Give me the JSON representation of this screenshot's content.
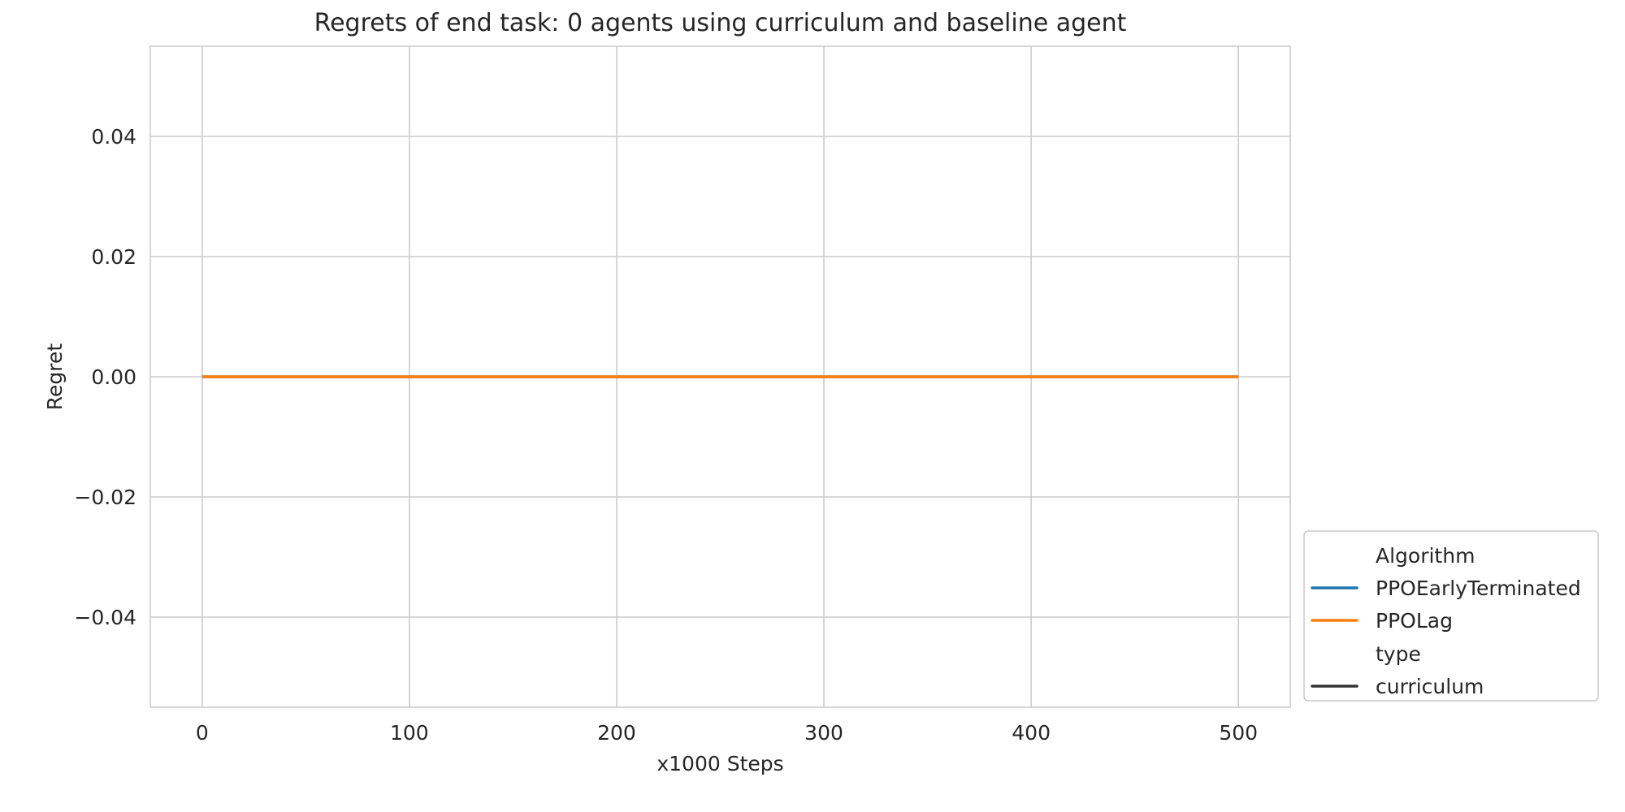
{
  "chart_data": {
    "type": "line",
    "title": "Regrets of end task: 0 agents using curriculum and baseline agent",
    "xlabel": "x1000 Steps",
    "ylabel": "Regret",
    "xlim": [
      -25,
      525
    ],
    "ylim": [
      -0.055,
      0.055
    ],
    "x_ticks": [
      0,
      100,
      200,
      300,
      400,
      500
    ],
    "x_tick_labels": [
      "0",
      "100",
      "200",
      "300",
      "400",
      "500"
    ],
    "y_ticks": [
      0.04,
      0.02,
      0.0,
      -0.02,
      -0.04
    ],
    "y_tick_labels": [
      "0.04",
      "0.02",
      "0.00",
      "−0.02",
      "−0.04"
    ],
    "grid": true,
    "legend_position": "lower-right-outside",
    "series": [
      {
        "name": "PPOEarlyTerminated",
        "type": "curriculum",
        "color": "#1f77b4",
        "x": [
          0,
          500
        ],
        "y": [
          0,
          0
        ]
      },
      {
        "name": "PPOLag",
        "type": "curriculum",
        "color": "#ff7f0e",
        "x": [
          0,
          500
        ],
        "y": [
          0,
          0
        ]
      }
    ],
    "legend": {
      "title1": "Algorithm",
      "entries1": [
        {
          "label": "PPOEarlyTerminated",
          "color": "#1f77b4"
        },
        {
          "label": "PPOLag",
          "color": "#ff7f0e"
        }
      ],
      "title2": "type",
      "entries2": [
        {
          "label": "curriculum",
          "color": "#333333"
        }
      ]
    }
  }
}
